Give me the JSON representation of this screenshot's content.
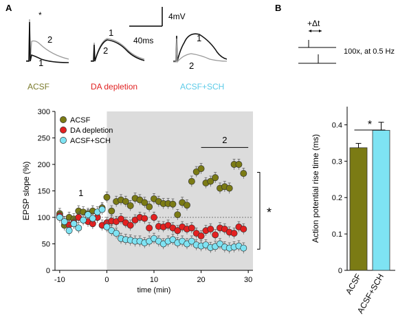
{
  "panel_labels": {
    "a": "A",
    "b": "B"
  },
  "traces": {
    "scale": {
      "voltage": "4mV",
      "time": "40ms"
    },
    "groups": [
      {
        "label": "ACSF",
        "color": "#7a7a2a",
        "curve_top": "2",
        "curve_bottom": "1",
        "star": "*"
      },
      {
        "label": "DA depletion",
        "color": "#e02020",
        "curve_top": "1",
        "curve_bottom": "2"
      },
      {
        "label": "ACSF+SCH",
        "color": "#6fd6ee",
        "curve_top": "1",
        "curve_bottom": "2"
      }
    ]
  },
  "protocol": {
    "delta_label": "+Δt",
    "repeat_label": "100x, at 0.5 Hz"
  },
  "colors": {
    "acsf": "#7b7b14",
    "da": "#e32020",
    "sch": "#7ee3f3",
    "shade": "#dcdcdc"
  },
  "chart_data": [
    {
      "type": "scatter",
      "xlabel": "time (min)",
      "ylabel": "EPSP slope (%)",
      "xlim": [
        -11,
        31
      ],
      "ylim": [
        0,
        300
      ],
      "xticks": [
        -10,
        0,
        10,
        20,
        30
      ],
      "yticks": [
        0,
        50,
        100,
        150,
        200,
        250,
        300
      ],
      "shaded_x": [
        0,
        31
      ],
      "reference_line_y": 100,
      "annotations": {
        "baseline": "1",
        "late": "2",
        "significance": "*"
      },
      "legend_position": "top-left",
      "series": [
        {
          "name": "ACSF",
          "color": "#7b7b14",
          "x": [
            -10,
            -9,
            -8,
            -7,
            -6,
            -5,
            -4,
            -3,
            -2,
            -1,
            0,
            1,
            2,
            3,
            4,
            5,
            6,
            7,
            8,
            9,
            10,
            11,
            12,
            13,
            14,
            15,
            16,
            17,
            18,
            19,
            20,
            21,
            22,
            23,
            24,
            25,
            26,
            27,
            28,
            29
          ],
          "y": [
            107,
            85,
            100,
            97,
            112,
            110,
            107,
            112,
            100,
            118,
            138,
            112,
            130,
            133,
            130,
            122,
            136,
            133,
            128,
            120,
            135,
            130,
            126,
            126,
            125,
            105,
            128,
            123,
            168,
            186,
            192,
            165,
            168,
            175,
            155,
            158,
            155,
            200,
            200,
            183
          ]
        },
        {
          "name": "DA depletion",
          "color": "#e32020",
          "x": [
            -10,
            -9,
            -8,
            -7,
            -6,
            -5,
            -4,
            -3,
            -2,
            -1,
            0,
            1,
            2,
            3,
            4,
            5,
            6,
            7,
            8,
            9,
            10,
            11,
            12,
            13,
            14,
            15,
            16,
            17,
            18,
            19,
            20,
            21,
            22,
            23,
            24,
            25,
            26,
            27,
            28,
            29
          ],
          "y": [
            103,
            92,
            86,
            90,
            100,
            95,
            92,
            88,
            100,
            85,
            90,
            93,
            92,
            97,
            90,
            85,
            95,
            100,
            98,
            80,
            100,
            83,
            82,
            85,
            80,
            75,
            82,
            78,
            80,
            70,
            65,
            75,
            78,
            67,
            80,
            78,
            72,
            70,
            82,
            78
          ]
        },
        {
          "name": "ACSF+SCH",
          "color": "#7ee3f3",
          "x": [
            -10,
            -9,
            -8,
            -7,
            -6,
            -5,
            -4,
            -3,
            -2,
            -1,
            0,
            1,
            2,
            3,
            4,
            5,
            6,
            7,
            8,
            9,
            10,
            11,
            12,
            13,
            14,
            15,
            16,
            17,
            18,
            19,
            20,
            21,
            22,
            23,
            24,
            25,
            26,
            27,
            28,
            29
          ],
          "y": [
            100,
            92,
            75,
            88,
            80,
            95,
            105,
            98,
            110,
            115,
            82,
            75,
            70,
            60,
            58,
            57,
            55,
            55,
            52,
            55,
            60,
            55,
            50,
            55,
            58,
            52,
            55,
            50,
            55,
            48,
            46,
            48,
            43,
            45,
            50,
            44,
            42,
            44,
            46,
            42
          ]
        }
      ]
    },
    {
      "type": "bar",
      "ylabel": "Action potential rise time (ms)",
      "categories": [
        "ACSF",
        "ACSF+SCH"
      ],
      "values": [
        0.337,
        0.385
      ],
      "errors": [
        0.012,
        0.022
      ],
      "colors": [
        "#7b7b14",
        "#7ee3f3"
      ],
      "ylim": [
        0,
        0.45
      ],
      "yticks": [
        0,
        0.1,
        0.2,
        0.3,
        0.4
      ],
      "significance": "*"
    }
  ]
}
